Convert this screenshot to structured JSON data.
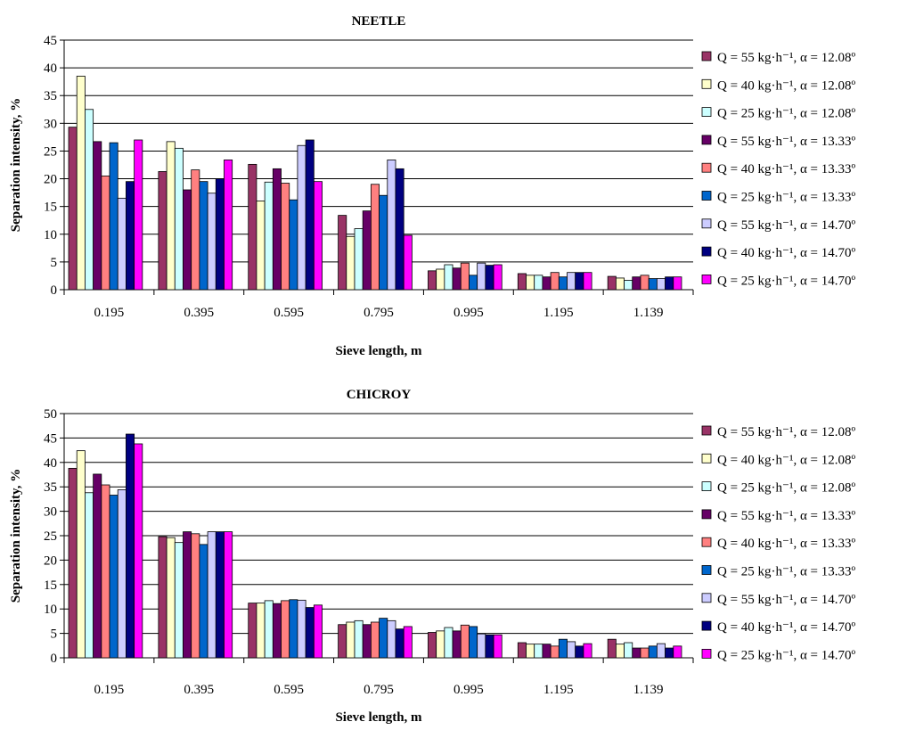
{
  "chart_data": [
    {
      "type": "bar",
      "title": "NEETLE",
      "xlabel": "Sieve length, m",
      "ylabel": "Separation intensity, %",
      "ylim": [
        0,
        45
      ],
      "yticks": [
        0,
        5,
        10,
        15,
        20,
        25,
        30,
        35,
        40,
        45
      ],
      "grid": true,
      "legend_position": "right",
      "categories": [
        "0.195",
        "0.395",
        "0.595",
        "0.795",
        "0.995",
        "1.195",
        "1.139"
      ],
      "series": [
        {
          "name": "Q = 55 kg·h⁻¹, α = 12.08º",
          "color": "#993366",
          "values": [
            29.3,
            21.3,
            22.6,
            13.4,
            3.4,
            2.9,
            2.4
          ]
        },
        {
          "name": "Q = 40 kg·h⁻¹, α = 12.08º",
          "color": "#FFFFCC",
          "values": [
            38.5,
            26.7,
            16.0,
            9.6,
            3.7,
            2.6,
            2.1
          ]
        },
        {
          "name": "Q = 25 kg·h⁻¹, α = 12.08º",
          "color": "#CCFFFF",
          "values": [
            32.5,
            25.5,
            19.4,
            11.0,
            4.5,
            2.6,
            1.7
          ]
        },
        {
          "name": "Q = 55 kg·h⁻¹, α = 13.33º",
          "color": "#660066",
          "values": [
            26.7,
            18.0,
            21.8,
            14.2,
            3.9,
            2.3,
            2.3
          ]
        },
        {
          "name": "Q = 40 kg·h⁻¹, α = 13.33º",
          "color": "#FF8080",
          "values": [
            20.5,
            21.6,
            19.2,
            19.0,
            4.8,
            3.1,
            2.6
          ]
        },
        {
          "name": "Q = 25 kg·h⁻¹, α =  13.33º",
          "color": "#0066CC",
          "values": [
            26.5,
            19.5,
            16.2,
            17.0,
            2.6,
            2.3,
            2.0
          ]
        },
        {
          "name": "Q = 55 kg·h⁻¹, α  =  14.70º",
          "color": "#CCCCFF",
          "values": [
            16.5,
            17.4,
            26.0,
            23.4,
            4.8,
            3.1,
            2.0
          ]
        },
        {
          "name": "Q = 40 kg·h⁻¹, α  =  14.70º",
          "color": "#000080",
          "values": [
            19.5,
            20.0,
            27.0,
            21.8,
            4.4,
            3.1,
            2.3
          ]
        },
        {
          "name": "Q = 25 kg·h⁻¹, α  =  14.70º",
          "color": "#FF00FF",
          "values": [
            27.0,
            23.4,
            19.5,
            9.8,
            4.5,
            3.1,
            2.3
          ]
        }
      ]
    },
    {
      "type": "bar",
      "title": "CHICROY",
      "xlabel": "Sieve length, m",
      "ylabel": "Separation intensity, %",
      "ylim": [
        0,
        50
      ],
      "yticks": [
        0,
        5,
        10,
        15,
        20,
        25,
        30,
        35,
        40,
        45,
        50
      ],
      "grid": true,
      "legend_position": "right",
      "categories": [
        "0.195",
        "0.395",
        "0.595",
        "0.795",
        "0.995",
        "1.195",
        "1.139"
      ],
      "series": [
        {
          "name": "Q = 55 kg·h⁻¹, α = 12.08º",
          "color": "#993366",
          "values": [
            38.8,
            24.8,
            11.2,
            6.8,
            5.2,
            3.1,
            3.8
          ]
        },
        {
          "name": "Q = 40 kg·h⁻¹, α = 12.08º",
          "color": "#FFFFCC",
          "values": [
            42.4,
            24.6,
            11.2,
            7.3,
            5.5,
            2.8,
            2.8
          ]
        },
        {
          "name": "Q = 25 kg·h⁻¹, α = 12.08º",
          "color": "#CCFFFF",
          "values": [
            33.8,
            23.6,
            11.7,
            7.6,
            6.2,
            2.8,
            3.1
          ]
        },
        {
          "name": "Q = 55 kg·h⁻¹, α = 13.33º",
          "color": "#660066",
          "values": [
            37.6,
            25.8,
            11.1,
            6.8,
            5.5,
            2.8,
            2.0
          ]
        },
        {
          "name": "Q = 40 kg·h⁻¹, α = 13.33º",
          "color": "#FF8080",
          "values": [
            35.4,
            25.4,
            11.7,
            7.3,
            6.7,
            2.4,
            2.0
          ]
        },
        {
          "name": "Q = 25 kg·h⁻¹, α =  13.33º",
          "color": "#0066CC",
          "values": [
            33.3,
            23.2,
            11.9,
            8.1,
            6.4,
            3.8,
            2.4
          ]
        },
        {
          "name": "Q = 55 kg·h⁻¹, α  =  14.70º",
          "color": "#CCCCFF",
          "values": [
            34.4,
            25.8,
            11.8,
            7.6,
            4.9,
            3.3,
            2.9
          ]
        },
        {
          "name": "Q = 40 kg·h⁻¹, α  =  14.70º",
          "color": "#000080",
          "values": [
            45.8,
            25.8,
            10.3,
            5.9,
            4.7,
            2.4,
            2.0
          ]
        },
        {
          "name": "Q = 25 kg·h⁻¹, α  =  14.70º",
          "color": "#FF00FF",
          "values": [
            43.8,
            25.8,
            10.8,
            6.4,
            4.7,
            2.9,
            2.4
          ]
        }
      ]
    }
  ]
}
